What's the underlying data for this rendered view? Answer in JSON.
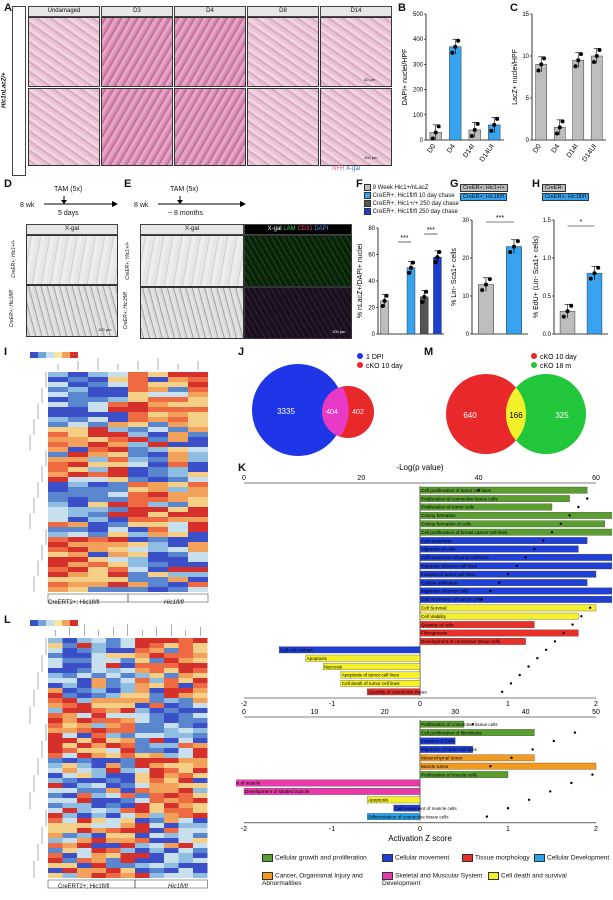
{
  "panels": {
    "A": "A",
    "B": "B",
    "C": "C",
    "D": "D",
    "E": "E",
    "F": "F",
    "G": "G",
    "H": "H",
    "I": "I",
    "J": "J",
    "K": "K",
    "L": "L",
    "M": "M"
  },
  "panelA": {
    "columns": [
      "Undamaged",
      "D3",
      "D4",
      "D8",
      "D14"
    ],
    "row_label": "Hic1nLacZ/+",
    "stain_pink": "NFR",
    "stain_blue": "X-gal",
    "scale1": "40 µm",
    "scale2": "100 µm"
  },
  "panelB": {
    "ylabel": "DAPI+ nuclei/HPF",
    "categories": [
      "D0",
      "D4",
      "D14I",
      "D14UI"
    ]
  },
  "panelC": {
    "ylabel": "LacZ+ nuclei/HPF",
    "categories": [
      "D0",
      "D4",
      "D14I",
      "D14UI"
    ]
  },
  "panelD": {
    "tam": "TAM (5x)",
    "start": "8 wk",
    "chase": "5 days",
    "stain": "X-gal",
    "rows": [
      "CreER+; Hic1+/+",
      "CreER+; Hic1fl/fl"
    ],
    "scale": "100 µm"
  },
  "panelE": {
    "tam": "TAM (5x)",
    "start": "8 wk",
    "chase": "~ 8 months",
    "stain1": "X-gal",
    "stain2_parts": [
      "X-gal",
      "LAM",
      "CD31",
      "DAPI"
    ],
    "rows": [
      "CreER+; Hic1+/+",
      "CreER+; Hic1fl/fl"
    ],
    "scale": "100 µm"
  },
  "panelF": {
    "legend": [
      "9 Week Hic1+/nLacZ",
      "CreER+; Hic1+/+ 10 day chase",
      "CreER+; Hic1fl/fl 10 day chase",
      "CreER+; Hic1+/+ 250 day chase",
      "CreER+; Hic1fl/fl 250 day chase"
    ],
    "ylabel": "% nLacZ+/DAPI+ nuclei",
    "sig": [
      "***",
      "***"
    ]
  },
  "panelG": {
    "legend": [
      "CreER+; Hic1+/+",
      "CreER+; Hic1fl/fl"
    ],
    "ylabel": "% Lin- Sca1+ cells",
    "sig": "***"
  },
  "panelH": {
    "legend": [
      "CreER-",
      "CreER+; Hic1fl/fl"
    ],
    "ylabel": "% EdU+ (Lin- Sca1+ cells)",
    "sig": "*"
  },
  "panelI": {
    "footer": [
      "CreERT2+; Hic1fl/fl",
      "Hic1fl/fl"
    ]
  },
  "panelL": {
    "footer": [
      "CreERT2+; Hic1fl/fl",
      "Hic1fl/fl"
    ]
  },
  "panelJ": {
    "legend": [
      "1 DPI",
      "cKO 10 day"
    ],
    "counts": [
      "3335",
      "404",
      "402"
    ]
  },
  "panelM": {
    "legend": [
      "cKO 10 day",
      "cKO 18 m"
    ],
    "counts": [
      "640",
      "166",
      "325"
    ]
  },
  "panelK": {
    "top_axis_label": "-Log(p value)",
    "bottom_axis_label": "Activation Z score",
    "terms1": [
      "Cell proliferation of tumor cell lines",
      "Proliferation of connective tissue cells",
      "Proliferation of tumor cells",
      "Colony formation",
      "Colony formation of cells",
      "Cell proliferation of breast cancer cell lines",
      "Cell movement",
      "Migration of cells",
      "Cell movement of tumor cell lines",
      "Migration of tumor cell lines",
      "Invasion of tumor cell lines",
      "Cellular infiltration",
      "Migration of tumor cells",
      "Cell movement of cancer cells",
      "Cell Survival",
      "Cell Viability",
      "Quantity of cells",
      "Fibrogenesis",
      "Development of connective tissue cells",
      "Cell-cell contact",
      "Apoptosis",
      "Necrosis",
      "Apoptosis of tumor cell lines",
      "Cell death of tumor cell lines",
      "Quantity of connective tissue"
    ],
    "terms2": [
      "Proliferation of connective tissue cells",
      "Cell proliferation of fibroblasts",
      "Invasion of Cells",
      "Migration of tumor cell lines",
      "Mesenchymal tumor",
      "Muscle tumor",
      "Proliferation of muscle cells",
      "Formation of muscle",
      "Development of striated muscle",
      "Apoptosis",
      "Cell movement of muscle cells",
      "Differentiation of connective tissue cells"
    ],
    "top_ticks1": [
      "0",
      "20",
      "40",
      "60"
    ],
    "top_ticks2": [
      "0",
      "10",
      "20",
      "30",
      "40",
      "50"
    ],
    "z_ticks": [
      "-2",
      "-1",
      "0",
      "1",
      "2"
    ],
    "legend": [
      {
        "label": "Cellular growth and proliferation",
        "color": "#5a9e2f"
      },
      {
        "label": "Cellular movement",
        "color": "#1f3fd6"
      },
      {
        "label": "Tissue morphology",
        "color": "#e8302a"
      },
      {
        "label": "Cellular Development",
        "color": "#29a3e8"
      },
      {
        "label": "Cancer, Organismal Injury and Abnormalities",
        "color": "#f29a1e"
      },
      {
        "label": "Skeletal and Muscular System Development",
        "color": "#e83aa8"
      },
      {
        "label": "Cell death and survival",
        "color": "#f5f02a"
      }
    ]
  },
  "chart_data": [
    {
      "type": "bar",
      "panel": "B",
      "categories": [
        "D0",
        "D4",
        "D14I",
        "D14UI"
      ],
      "values": [
        30,
        370,
        40,
        60
      ],
      "ylim": [
        0,
        500
      ],
      "yticks": [
        0,
        100,
        200,
        300,
        400,
        500
      ],
      "ylabel": "DAPI+ nuclei/HPF"
    },
    {
      "type": "bar",
      "panel": "C",
      "categories": [
        "D0",
        "D4",
        "D14I",
        "D14UI"
      ],
      "values": [
        9,
        1.5,
        9.5,
        10
      ],
      "ylim": [
        0,
        15
      ],
      "yticks": [
        0,
        5,
        10,
        15
      ],
      "ylabel": "LacZ+ nuclei/HPF"
    },
    {
      "type": "bar",
      "panel": "F",
      "categories": [
        "9 Week",
        "10d +/+",
        "10d fl/fl",
        "250d +/+",
        "250d fl/fl"
      ],
      "values": [
        25,
        null,
        50,
        28,
        58
      ],
      "ylim": [
        0,
        80
      ],
      "yticks": [
        0,
        20,
        40,
        60,
        80
      ],
      "ylabel": "% nLacZ+/DAPI+ nuclei"
    },
    {
      "type": "bar",
      "panel": "G",
      "categories": [
        "CreER+; Hic1+/+",
        "CreER+; Hic1fl/fl"
      ],
      "values": [
        13,
        23
      ],
      "ylim": [
        0,
        30
      ],
      "yticks": [
        0,
        10,
        20,
        30
      ],
      "ylabel": "% Lin- Sca1+ cells"
    },
    {
      "type": "bar",
      "panel": "H",
      "categories": [
        "CreER-",
        "CreER+; Hic1fl/fl"
      ],
      "values": [
        0.3,
        0.8
      ],
      "ylim": [
        0,
        1.5
      ],
      "yticks": [
        0.0,
        0.5,
        1.0,
        1.5
      ],
      "ylabel": "% EdU+ (Lin- Sca1+ cells)"
    },
    {
      "type": "bar",
      "panel": "K1",
      "orientation": "horizontal",
      "z": [
        1.9,
        1.7,
        1.5,
        2.4,
        2.1,
        2.2,
        1.9,
        1.8,
        2.5,
        2.5,
        2.0,
        1.9,
        2.3,
        2.6,
        2.0,
        1.8,
        1.3,
        1.8,
        1.2,
        -1.6,
        -1.3,
        -1.1,
        -0.9,
        -0.9,
        -0.6
      ],
      "zlim": [
        -2,
        2
      ]
    },
    {
      "type": "bar",
      "panel": "K2",
      "orientation": "horizontal",
      "z": [
        0.5,
        1.3,
        0.4,
        0.6,
        1.3,
        2.0,
        1.0,
        -2.3,
        -2.0,
        -0.6,
        -0.3,
        -0.6
      ],
      "zlim": [
        -2,
        2
      ]
    }
  ]
}
